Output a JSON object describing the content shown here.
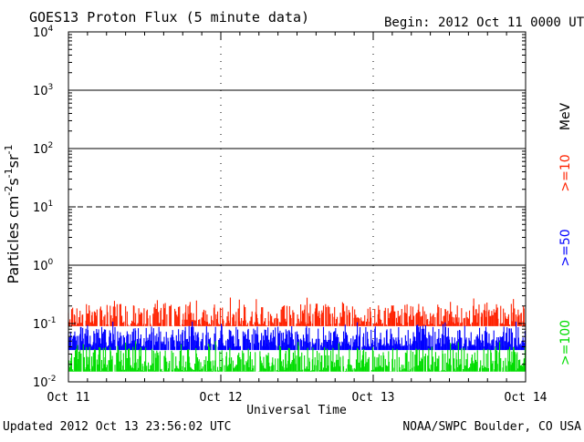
{
  "page": {
    "title": "GOES13 Proton Flux (5 minute data)",
    "begin": "Begin: 2012 Oct 11 0000 UTC",
    "updated": "Updated 2012 Oct 13 23:56:02 UTC",
    "source": "NOAA/SWPC Boulder, CO USA"
  },
  "chart_data": {
    "type": "line",
    "title": "GOES13 Proton Flux (5 minute data)",
    "xlabel": "Universal Time",
    "ylabel_base": "Particles cm",
    "ylabel_parts": [
      {
        "text": "Particles cm",
        "sup": false
      },
      {
        "text": "-2",
        "sup": true
      },
      {
        "text": "s",
        "sup": false
      },
      {
        "text": "-1",
        "sup": true
      },
      {
        "text": "sr",
        "sup": false
      },
      {
        "text": "-1",
        "sup": true
      }
    ],
    "y_scale": "log",
    "ylim": [
      0.01,
      10000
    ],
    "y_ticks": [
      {
        "base": "10",
        "exp": "4",
        "value": 10000
      },
      {
        "base": "10",
        "exp": "3",
        "value": 1000
      },
      {
        "base": "10",
        "exp": "2",
        "value": 100
      },
      {
        "base": "10",
        "exp": "1",
        "value": 10
      },
      {
        "base": "10",
        "exp": "0",
        "value": 1
      },
      {
        "base": "10",
        "exp": "-1",
        "value": 0.1
      },
      {
        "base": "10",
        "exp": "-2",
        "value": 0.01
      }
    ],
    "solid_grid_y": [
      1000,
      100,
      1
    ],
    "dashed_grid_y": [
      10
    ],
    "x_ticks": [
      "Oct 11",
      "Oct 12",
      "Oct 13",
      "Oct 14"
    ],
    "day_separators": [
      "Oct 12",
      "Oct 13"
    ],
    "legend_unit": "MeV",
    "series": [
      {
        "name": ">=10",
        "color": "#ff2200",
        "baseline": 0.09,
        "typical_range": [
          0.09,
          0.22
        ],
        "max": 0.28
      },
      {
        "name": ">=50",
        "color": "#0000ff",
        "baseline": 0.035,
        "typical_range": [
          0.04,
          0.09
        ],
        "max": 0.11
      },
      {
        "name": ">=100",
        "color": "#00dd00",
        "baseline": 0.015,
        "typical_range": [
          0.015,
          0.04
        ],
        "max": 0.05
      }
    ]
  }
}
